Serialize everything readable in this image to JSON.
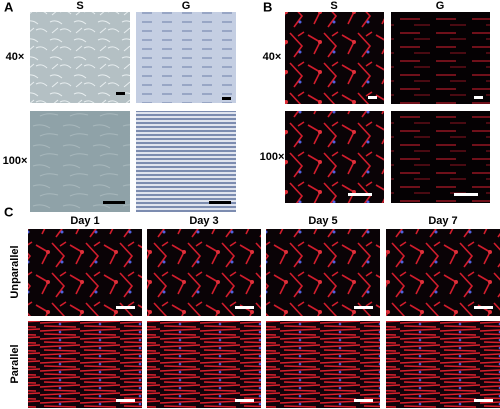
{
  "panels": {
    "A": {
      "label": "A",
      "columns": [
        "S",
        "G"
      ],
      "rows": [
        "40×",
        "100×"
      ]
    },
    "B": {
      "label": "B",
      "columns": [
        "S",
        "G"
      ],
      "rows": [
        "40×",
        "100×"
      ]
    },
    "C": {
      "label": "C",
      "columns": [
        "Day 1",
        "Day 3",
        "Day 5",
        "Day 7"
      ],
      "rows": [
        "Unparallel",
        "Parallel"
      ]
    }
  }
}
